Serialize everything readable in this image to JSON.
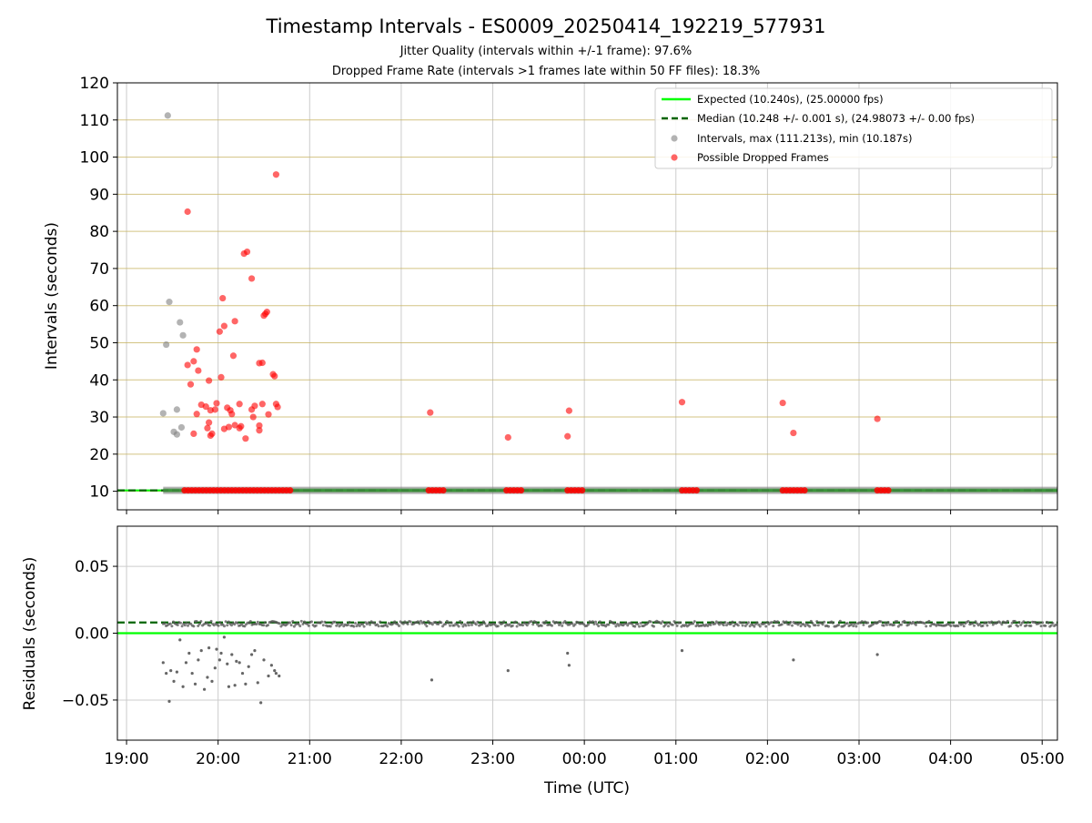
{
  "figure": {
    "title": "Timestamp Intervals - ES0009_20250414_192219_577931",
    "subtitle1": "Jitter Quality (intervals within +/-1 frame): 97.6%",
    "subtitle2": "Dropped Frame Rate (intervals >1 frames late within 50 FF files): 18.3%",
    "xlabel": "Time (UTC)"
  },
  "colors": {
    "expected": "#00ff00",
    "median": "#006400",
    "intervals": "#808080",
    "dropped": "#ff0000",
    "residual_points": "#555555",
    "gridline_top": "#c8b464",
    "gridline": "#cccccc"
  },
  "chart_data": [
    {
      "type": "scatter",
      "panel": "intervals",
      "ylabel": "Intervals (seconds)",
      "xlim": [
        "18:54",
        "05:10"
      ],
      "ylim": [
        5,
        120
      ],
      "xticks": [
        "19:00",
        "20:00",
        "21:00",
        "22:00",
        "23:00",
        "00:00",
        "01:00",
        "02:00",
        "03:00",
        "04:00",
        "05:00"
      ],
      "yticks": [
        10,
        20,
        30,
        40,
        50,
        60,
        70,
        80,
        90,
        100,
        110,
        120
      ],
      "grid": true,
      "legend_position": "top-right",
      "reference_lines": [
        {
          "name": "Expected (10.240s), (25.00000 fps)",
          "y": 10.24,
          "style": "solid"
        },
        {
          "name": "Median (10.248 +/- 0.001 s), (24.98073 +/- 0.00 fps)",
          "y": 10.248,
          "style": "dashed"
        }
      ],
      "series": [
        {
          "name": "Intervals, max (111.213s), min (10.187s)",
          "points": [
            [
              "19:27",
              111.2
            ],
            [
              "19:28",
              61
            ],
            [
              "19:26",
              49.5
            ],
            [
              "19:35",
              55.5
            ],
            [
              "19:37",
              52
            ],
            [
              "19:33",
              32
            ],
            [
              "19:31",
              26
            ],
            [
              "19:33",
              25.3
            ],
            [
              "19:36",
              27.2
            ],
            [
              "19:24",
              31
            ]
          ]
        },
        {
          "name": "Possible Dropped Frames",
          "points": [
            [
              "19:40",
              85.3
            ],
            [
              "20:38",
              95.3
            ],
            [
              "20:17",
              74
            ],
            [
              "20:19",
              74.5
            ],
            [
              "20:22",
              67.3
            ],
            [
              "20:03",
              62
            ],
            [
              "20:31",
              57.8
            ],
            [
              "20:32",
              58.3
            ],
            [
              "20:30",
              57.3
            ],
            [
              "20:11",
              55.8
            ],
            [
              "20:04",
              54.5
            ],
            [
              "20:01",
              53
            ],
            [
              "19:46",
              48.2
            ],
            [
              "20:10",
              46.5
            ],
            [
              "20:27",
              44.5
            ],
            [
              "20:29",
              44.6
            ],
            [
              "19:40",
              44
            ],
            [
              "19:44",
              45
            ],
            [
              "19:47",
              42.5
            ],
            [
              "20:36",
              41.5
            ],
            [
              "20:37",
              41
            ],
            [
              "20:02",
              40.7
            ],
            [
              "19:54",
              39.8
            ],
            [
              "19:42",
              38.8
            ],
            [
              "19:49",
              33.3
            ],
            [
              "19:52",
              32.8
            ],
            [
              "19:59",
              33.7
            ],
            [
              "20:06",
              32.5
            ],
            [
              "20:14",
              33.5
            ],
            [
              "20:22",
              32
            ],
            [
              "20:24",
              33
            ],
            [
              "20:29",
              33.5
            ],
            [
              "20:38",
              33.5
            ],
            [
              "20:39",
              32.7
            ],
            [
              "19:46",
              30.8
            ],
            [
              "19:55",
              31.8
            ],
            [
              "19:58",
              32
            ],
            [
              "20:08",
              31.8
            ],
            [
              "20:09",
              30.8
            ],
            [
              "20:23",
              30
            ],
            [
              "20:33",
              30.7
            ],
            [
              "19:54",
              28.5
            ],
            [
              "19:53",
              27
            ],
            [
              "20:07",
              27.3
            ],
            [
              "20:11",
              27.8
            ],
            [
              "20:15",
              27.5
            ],
            [
              "20:04",
              26.8
            ],
            [
              "20:14",
              27
            ],
            [
              "20:27",
              27.7
            ],
            [
              "20:27",
              26.4
            ],
            [
              "19:56",
              25.5
            ],
            [
              "19:55",
              25
            ],
            [
              "19:44",
              25.5
            ],
            [
              "20:18",
              24.2
            ],
            [
              "22:19",
              31.2
            ],
            [
              "23:10",
              24.5
            ],
            [
              "23:50",
              31.7
            ],
            [
              "23:49",
              24.8
            ],
            [
              "01:04",
              34
            ],
            [
              "02:10",
              33.8
            ],
            [
              "02:17",
              25.7
            ],
            [
              "03:12",
              29.5
            ]
          ],
          "baseline_clusters_at_10_24": [
            [
              "19:38",
              "20:48"
            ],
            [
              "22:18",
              "22:28"
            ],
            [
              "23:09",
              "23:19"
            ],
            [
              "23:49",
              "23:59"
            ],
            [
              "01:04",
              "01:14"
            ],
            [
              "02:10",
              "02:26"
            ],
            [
              "03:12",
              "03:21"
            ]
          ]
        }
      ]
    },
    {
      "type": "scatter",
      "panel": "residuals",
      "ylabel": "Residuals (seconds)",
      "xlim": [
        "18:54",
        "05:10"
      ],
      "ylim": [
        -0.08,
        0.08
      ],
      "yticks": [
        -0.05,
        0.0,
        0.05
      ],
      "ytick_labels": [
        "−0.05",
        "0.00",
        "0.05"
      ],
      "grid": true,
      "reference_lines": [
        {
          "name": "Expected",
          "y": 0.0,
          "style": "solid"
        },
        {
          "name": "Median",
          "y": 0.008,
          "style": "dashed"
        }
      ],
      "series": [
        {
          "name": "Residuals",
          "band": {
            "from": "19:24",
            "to": "05:10",
            "y": 0.007,
            "spread": 0.004
          },
          "points": [
            [
              "19:24",
              -0.022
            ],
            [
              "19:26",
              -0.03
            ],
            [
              "19:28",
              -0.051
            ],
            [
              "19:29",
              -0.028
            ],
            [
              "19:31",
              -0.036
            ],
            [
              "19:33",
              -0.029
            ],
            [
              "19:35",
              -0.005
            ],
            [
              "19:37",
              -0.04
            ],
            [
              "19:39",
              -0.022
            ],
            [
              "19:41",
              -0.015
            ],
            [
              "19:43",
              -0.03
            ],
            [
              "19:45",
              -0.038
            ],
            [
              "19:47",
              -0.02
            ],
            [
              "19:49",
              -0.013
            ],
            [
              "19:51",
              -0.042
            ],
            [
              "19:53",
              -0.033
            ],
            [
              "19:54",
              -0.011
            ],
            [
              "19:56",
              -0.036
            ],
            [
              "19:58",
              -0.026
            ],
            [
              "19:59",
              -0.012
            ],
            [
              "20:01",
              -0.02
            ],
            [
              "20:02",
              -0.015
            ],
            [
              "20:04",
              -0.003
            ],
            [
              "20:06",
              -0.023
            ],
            [
              "20:07",
              -0.04
            ],
            [
              "20:09",
              -0.016
            ],
            [
              "20:11",
              -0.039
            ],
            [
              "20:12",
              -0.021
            ],
            [
              "20:14",
              -0.022
            ],
            [
              "20:16",
              -0.03
            ],
            [
              "20:18",
              -0.038
            ],
            [
              "20:20",
              -0.025
            ],
            [
              "20:22",
              -0.016
            ],
            [
              "20:24",
              -0.013
            ],
            [
              "20:26",
              -0.037
            ],
            [
              "20:28",
              -0.052
            ],
            [
              "20:30",
              -0.02
            ],
            [
              "20:33",
              -0.032
            ],
            [
              "20:35",
              -0.024
            ],
            [
              "20:37",
              -0.028
            ],
            [
              "20:38",
              -0.03
            ],
            [
              "20:40",
              -0.032
            ],
            [
              "22:20",
              -0.035
            ],
            [
              "23:10",
              -0.028
            ],
            [
              "23:49",
              -0.015
            ],
            [
              "23:50",
              -0.024
            ],
            [
              "01:04",
              -0.013
            ],
            [
              "02:17",
              -0.02
            ],
            [
              "03:12",
              -0.016
            ]
          ]
        }
      ]
    }
  ]
}
